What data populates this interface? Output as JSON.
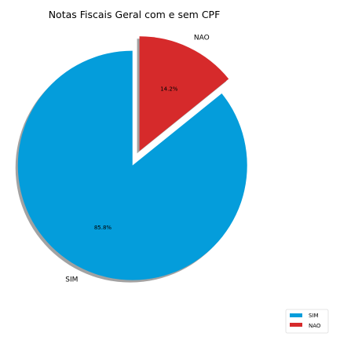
{
  "chart_data": {
    "type": "pie",
    "title": "Notas Fiscais Geral com e sem CPF",
    "categories": [
      "SIM",
      "NAO"
    ],
    "values": [
      85.8,
      14.2
    ],
    "percent_labels": [
      "85.8%",
      "14.2%"
    ],
    "colors": [
      "#049ddb",
      "#d62a2b"
    ],
    "exploded": [
      "SIM",
      "NAO"
    ],
    "shadow": true,
    "start_angle_deg": 90,
    "legend": {
      "placement": "lower-right",
      "entries": [
        "SIM",
        "NAO"
      ]
    }
  }
}
